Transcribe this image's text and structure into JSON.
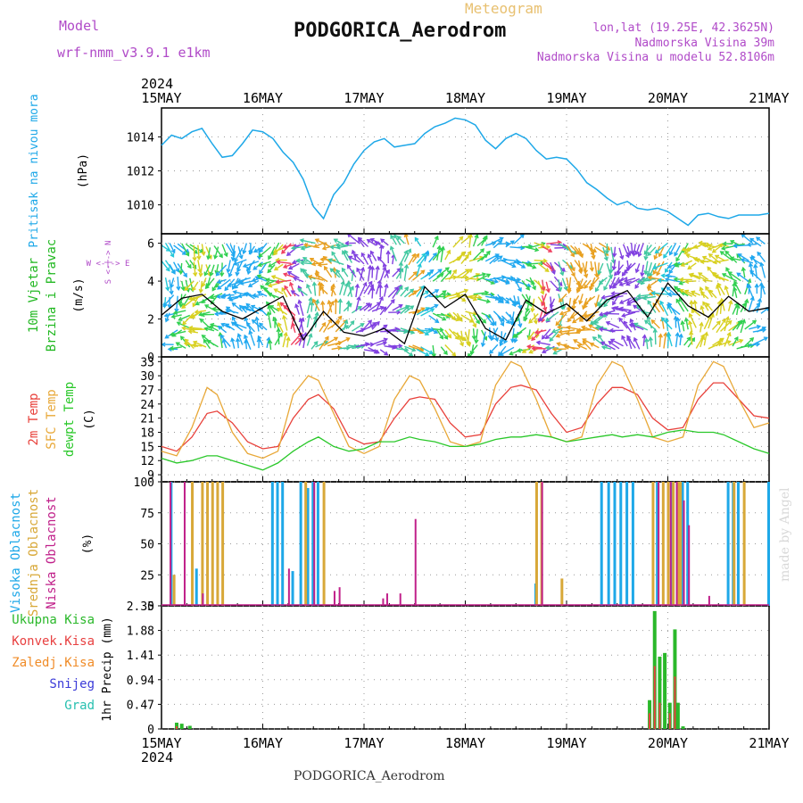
{
  "header": {
    "model_label": "Model",
    "model_name": "wrf-nmm_v3.9.1 e1km",
    "subtitle": "Meteogram",
    "station": "PODGORICA_Aerodrom",
    "lonlat": "lon,lat (19.25E, 42.3625N)",
    "altitude": "Nadmorska Visina 39m",
    "model_altitude": "Nadmorska Visina u modelu 52.8106m",
    "credit": "made by Angel",
    "footer": "PODGORICA_Aerodrom"
  },
  "colors": {
    "pressure": "#1ea8e8",
    "t2m": "#e8403a",
    "sfc": "#e8a838",
    "dew": "#2ac82a",
    "high_cloud": "#1ea8e8",
    "mid_cloud": "#d8a838",
    "low_cloud": "#c0208a",
    "wind_speed": "#000000",
    "precip_total": "#2ab82a",
    "precip_conv": "#e84040",
    "precip_frozen": "#f08c28",
    "snow": "#3a3ad8",
    "hail": "#28c0b0",
    "label_purple": "#b04ac8"
  },
  "chart_data": [
    {
      "id": "time_axis",
      "type": "line",
      "year": "2024",
      "x_ticks": [
        "15MAY",
        "16MAY",
        "17MAY",
        "18MAY",
        "19MAY",
        "20MAY",
        "21MAY"
      ]
    },
    {
      "id": "pressure",
      "type": "line",
      "ylabel": "(hPa)",
      "side_label": [
        "Pritisak na nivou mora"
      ],
      "ylim": [
        1008.3,
        1015.7
      ],
      "y_ticks": [
        1010,
        1012,
        1014
      ],
      "grid": true,
      "series": [
        {
          "name": "Pritisak na nivou mora",
          "x": [
            0,
            0.1,
            0.2,
            0.3,
            0.4,
            0.5,
            0.6,
            0.7,
            0.8,
            0.9,
            1.0,
            1.1,
            1.2,
            1.3,
            1.4,
            1.5,
            1.6,
            1.7,
            1.8,
            1.9,
            2.0,
            2.1,
            2.2,
            2.3,
            2.4,
            2.5,
            2.6,
            2.7,
            2.8,
            2.9,
            3.0,
            3.1,
            3.2,
            3.3,
            3.4,
            3.5,
            3.6,
            3.7,
            3.8,
            3.9,
            4.0,
            4.1,
            4.2,
            4.3,
            4.4,
            4.5,
            4.6,
            4.7,
            4.8,
            4.9,
            5.0,
            5.1,
            5.2,
            5.3,
            5.4,
            5.5,
            5.6,
            5.7,
            5.8,
            5.9,
            6.0
          ],
          "values": [
            1013.5,
            1014.1,
            1013.9,
            1014.3,
            1014.5,
            1013.6,
            1012.8,
            1012.9,
            1013.6,
            1014.4,
            1014.3,
            1013.9,
            1013.1,
            1012.5,
            1011.5,
            1009.9,
            1009.2,
            1010.6,
            1011.3,
            1012.4,
            1013.2,
            1013.7,
            1013.9,
            1013.4,
            1013.5,
            1013.6,
            1014.2,
            1014.6,
            1014.8,
            1015.1,
            1015.0,
            1014.7,
            1013.8,
            1013.3,
            1013.9,
            1014.2,
            1013.9,
            1013.2,
            1012.7,
            1012.8,
            1012.7,
            1012.1,
            1011.3,
            1010.9,
            1010.4,
            1010.0,
            1010.2,
            1009.8,
            1009.7,
            1009.8,
            1009.6,
            1009.2,
            1008.8,
            1009.4,
            1009.5,
            1009.3,
            1009.2,
            1009.4,
            1009.4,
            1009.4,
            1009.5
          ]
        }
      ]
    },
    {
      "id": "wind",
      "type": "line",
      "ylabel": "(m/s)",
      "side_label": [
        "10m Vjetar",
        "Brzina i Pravac"
      ],
      "compass": "W <-|-> E",
      "compass_v": "S <-|-> N",
      "ylim": [
        0,
        6.5
      ],
      "y_ticks": [
        0,
        2,
        4,
        6
      ],
      "grid": true,
      "series": [
        {
          "name": "Brzina",
          "x": [
            0,
            0.2,
            0.4,
            0.6,
            0.8,
            1.0,
            1.2,
            1.4,
            1.6,
            1.8,
            2.0,
            2.2,
            2.4,
            2.6,
            2.8,
            3.0,
            3.2,
            3.4,
            3.6,
            3.8,
            4.0,
            4.2,
            4.4,
            4.6,
            4.8,
            5.0,
            5.2,
            5.4,
            5.6,
            5.8,
            6.0
          ],
          "values": [
            2.2,
            3.1,
            3.3,
            2.4,
            2.0,
            2.6,
            3.2,
            0.9,
            2.4,
            1.3,
            1.1,
            1.5,
            0.7,
            3.7,
            2.6,
            3.3,
            1.5,
            0.9,
            3.0,
            2.3,
            2.8,
            1.9,
            3.0,
            3.5,
            2.1,
            3.9,
            2.7,
            2.1,
            3.2,
            2.4,
            2.6
          ]
        }
      ]
    },
    {
      "id": "temperature",
      "type": "line",
      "ylabel": "(C)",
      "side_label": [
        "2m Temp",
        "SFC Temp",
        "dewpt Temp"
      ],
      "ylim": [
        7.5,
        34
      ],
      "y_ticks": [
        9,
        12,
        15,
        18,
        21,
        24,
        27,
        30,
        33
      ],
      "grid": true,
      "series": [
        {
          "name": "2m Temp",
          "x": [
            0,
            0.15,
            0.3,
            0.45,
            0.55,
            0.7,
            0.85,
            1.0,
            1.15,
            1.3,
            1.45,
            1.55,
            1.7,
            1.85,
            2.0,
            2.15,
            2.3,
            2.45,
            2.55,
            2.7,
            2.85,
            3.0,
            3.15,
            3.3,
            3.45,
            3.55,
            3.7,
            3.85,
            4.0,
            4.15,
            4.3,
            4.45,
            4.55,
            4.7,
            4.85,
            5.0,
            5.15,
            5.3,
            5.45,
            5.55,
            5.7,
            5.85,
            6.0
          ],
          "values": [
            15,
            14,
            17,
            22,
            22.5,
            20,
            16,
            14.5,
            15,
            21,
            25,
            26,
            23,
            17,
            15.5,
            16,
            21,
            25,
            25.5,
            25,
            20,
            17,
            17.5,
            24,
            27.5,
            28,
            27,
            22,
            18,
            19,
            24,
            27.5,
            27.5,
            26,
            21,
            18.5,
            19,
            25,
            28.5,
            28.5,
            25,
            21.5,
            21
          ]
        },
        {
          "name": "SFC Temp",
          "x": [
            0,
            0.15,
            0.3,
            0.45,
            0.55,
            0.7,
            0.85,
            1.0,
            1.15,
            1.3,
            1.45,
            1.55,
            1.7,
            1.85,
            2.0,
            2.15,
            2.3,
            2.45,
            2.55,
            2.7,
            2.85,
            3.0,
            3.15,
            3.3,
            3.45,
            3.55,
            3.7,
            3.85,
            4.0,
            4.15,
            4.3,
            4.45,
            4.55,
            4.7,
            4.85,
            5.0,
            5.15,
            5.3,
            5.45,
            5.55,
            5.7,
            5.85,
            6.0
          ],
          "values": [
            14,
            13,
            19,
            27.5,
            26,
            18,
            13.5,
            12.5,
            14,
            26,
            30,
            29,
            22,
            15,
            13.5,
            15,
            25,
            30,
            29,
            23,
            16,
            15,
            16,
            28,
            33,
            32,
            25,
            17,
            16,
            17,
            28,
            33,
            32,
            25,
            17,
            16,
            17,
            28,
            33,
            32,
            25,
            19,
            20
          ]
        },
        {
          "name": "dewpt Temp",
          "x": [
            0,
            0.15,
            0.3,
            0.45,
            0.55,
            0.7,
            0.85,
            1.0,
            1.15,
            1.3,
            1.45,
            1.55,
            1.7,
            1.85,
            2.0,
            2.15,
            2.3,
            2.45,
            2.55,
            2.7,
            2.85,
            3.0,
            3.15,
            3.3,
            3.45,
            3.55,
            3.7,
            3.85,
            4.0,
            4.15,
            4.3,
            4.45,
            4.55,
            4.7,
            4.85,
            5.0,
            5.15,
            5.3,
            5.45,
            5.55,
            5.7,
            5.85,
            6.0
          ],
          "values": [
            12.5,
            11.5,
            12,
            13,
            13,
            12,
            11,
            10,
            11.5,
            14,
            16,
            17,
            15,
            14,
            14.5,
            16,
            16,
            17,
            16.5,
            16,
            15,
            15,
            15.5,
            16.5,
            17,
            17,
            17.5,
            17,
            16,
            16.5,
            17,
            17.5,
            17,
            17.5,
            17,
            18,
            18.5,
            18,
            18,
            17.5,
            16,
            14.5,
            13.5
          ]
        }
      ]
    },
    {
      "id": "clouds",
      "type": "bar",
      "ylabel": "(%)",
      "side_label": [
        "Visoka Oblacnost",
        "Srednja Oblacnost",
        "Niska Oblacnost"
      ],
      "ylim": [
        0,
        100
      ],
      "y_ticks": [
        0,
        25,
        50,
        75,
        100
      ],
      "grid": true,
      "series": [
        {
          "name": "Visoka Oblacnost",
          "x": [
            0.1,
            0.35,
            1.1,
            1.15,
            1.2,
            1.3,
            1.38,
            1.45,
            1.5,
            1.55,
            3.7,
            4.35,
            4.42,
            4.48,
            4.54,
            4.6,
            4.66,
            4.9,
            5.05,
            5.1,
            5.15,
            5.2,
            5.6,
            5.65,
            5.7,
            6.0
          ],
          "values": [
            100,
            30,
            100,
            100,
            100,
            28,
            100,
            95,
            100,
            100,
            18,
            100,
            100,
            100,
            100,
            100,
            100,
            100,
            100,
            100,
            100,
            100,
            100,
            100,
            100,
            100
          ]
        },
        {
          "name": "Srednja Oblacnost",
          "x": [
            0.12,
            0.3,
            0.4,
            0.45,
            0.5,
            0.55,
            0.6,
            1.42,
            1.6,
            3.7,
            3.75,
            3.95,
            4.85,
            4.95,
            5.0,
            5.05,
            5.1,
            5.12,
            5.65,
            5.75
          ],
          "values": [
            25,
            100,
            100,
            100,
            100,
            100,
            100,
            100,
            100,
            100,
            100,
            22,
            100,
            100,
            100,
            100,
            100,
            100,
            100,
            100
          ]
        },
        {
          "name": "Niska Oblacnost",
          "x": [
            0.08,
            0.22,
            0.4,
            1.25,
            1.5,
            1.7,
            1.75,
            2.18,
            2.22,
            2.35,
            2.5,
            3.75,
            4.9,
            5.02,
            5.08,
            5.15,
            5.2,
            5.4
          ],
          "values": [
            100,
            100,
            10,
            30,
            100,
            12,
            15,
            6,
            10,
            10,
            70,
            100,
            100,
            100,
            100,
            85,
            65,
            8
          ]
        }
      ]
    },
    {
      "id": "precipitation",
      "type": "bar",
      "ylabel": "1hr Precip (mm)",
      "ylim": [
        0,
        2.35
      ],
      "y_ticks": [
        0,
        0.47,
        0.94,
        1.41,
        1.88,
        2.35
      ],
      "y_tick_labels": [
        "0",
        "0.47",
        "0.94",
        "1.41",
        "1.88",
        "2.35"
      ],
      "grid": true,
      "legend": [
        "Ukupna Kisa",
        "Konvek.Kisa",
        "Zaledj.Kisa",
        "Snijeg",
        "Grad"
      ],
      "series": [
        {
          "name": "Ukupna Kisa",
          "x": [
            0.15,
            0.2,
            0.28,
            4.82,
            4.87,
            4.92,
            4.97,
            5.02,
            5.07,
            5.1,
            5.15
          ],
          "values": [
            0.12,
            0.1,
            0.06,
            0.55,
            2.25,
            1.38,
            1.45,
            0.5,
            1.9,
            0.5,
            0.05
          ]
        },
        {
          "name": "Konvek.Kisa",
          "x": [
            0.15,
            4.82,
            4.87,
            4.92,
            5.02,
            5.07
          ],
          "values": [
            0.05,
            0.3,
            1.2,
            0.5,
            0.3,
            1.0
          ]
        }
      ]
    }
  ]
}
